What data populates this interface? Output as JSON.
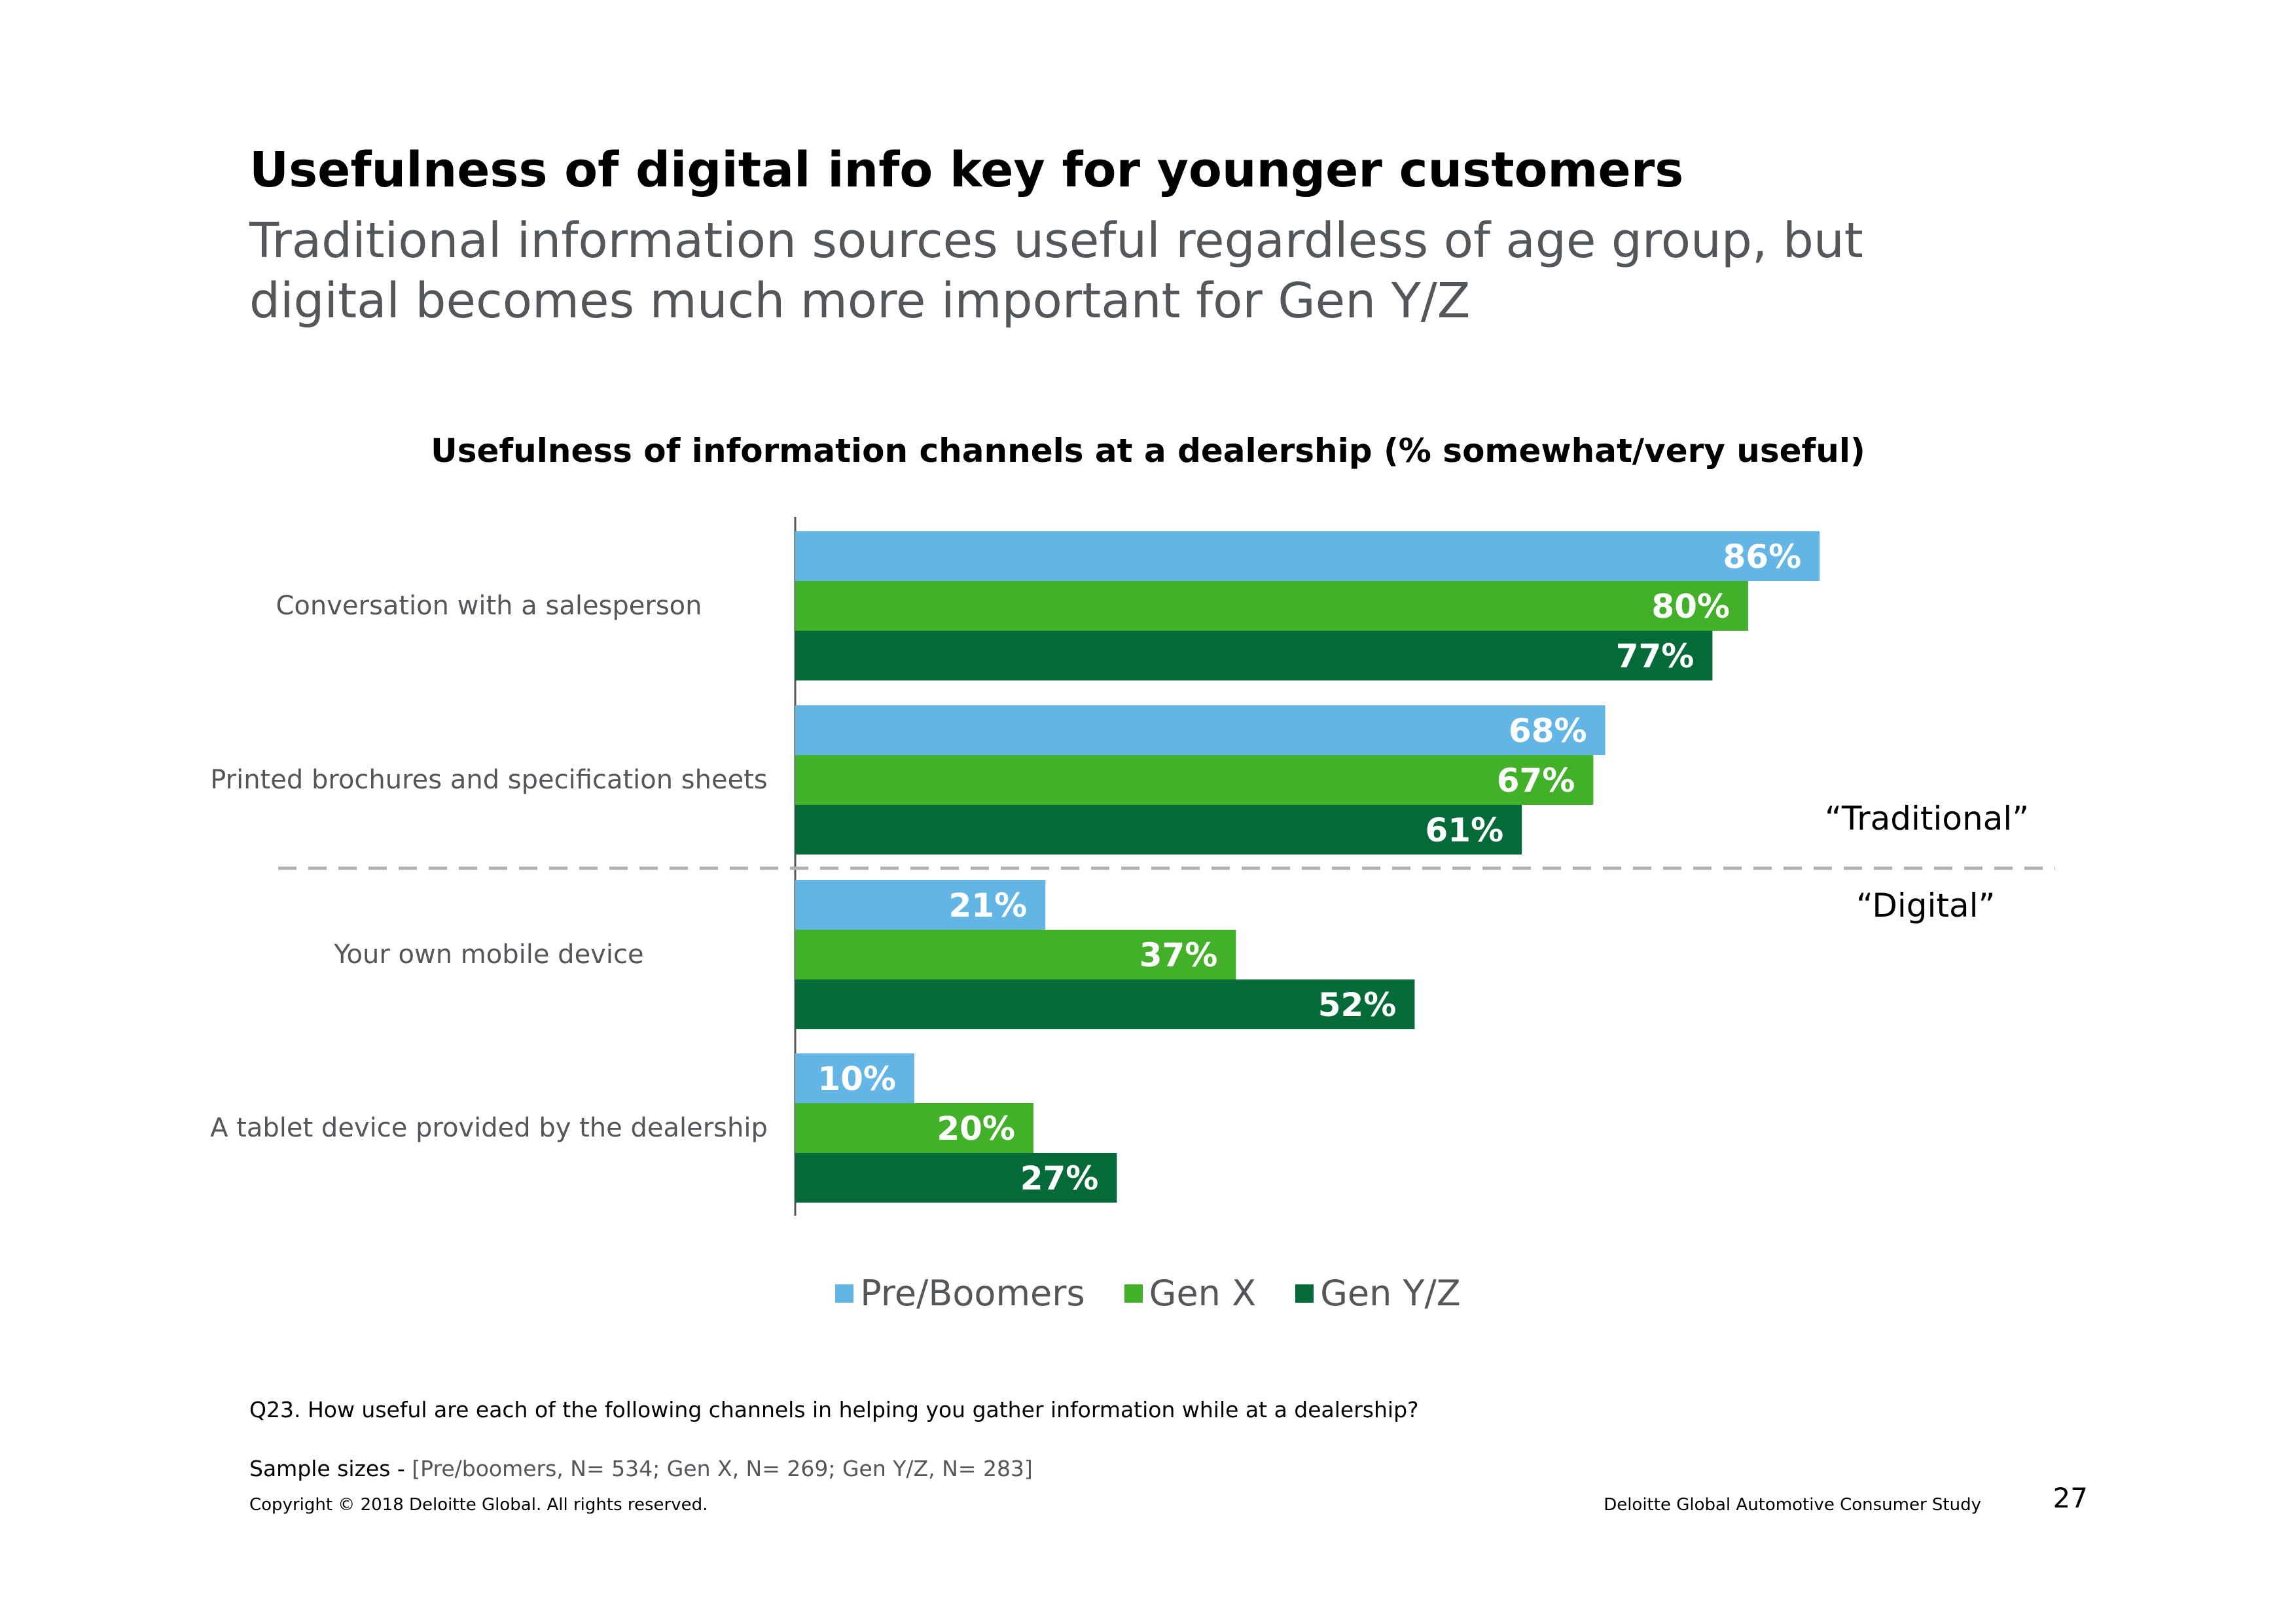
{
  "slide": {
    "title": "Usefulness of digital info key for younger customers",
    "subtitle": "Traditional information sources useful regardless of age group, but digital becomes much more important for Gen Y/Z"
  },
  "chart_data": {
    "type": "bar",
    "orientation": "horizontal",
    "title": "Usefulness of information channels at a dealership (% somewhat/very useful)",
    "categories": [
      "Conversation with a salesperson",
      "Printed brochures and specification sheets",
      "Your own mobile device",
      "A tablet device provided by the dealership"
    ],
    "series": [
      {
        "name": "Pre/Boomers",
        "values": [
          86,
          68,
          21,
          10
        ],
        "color": "#62b5e5"
      },
      {
        "name": "Gen X",
        "values": [
          80,
          67,
          37,
          20
        ],
        "color": "#43b02a"
      },
      {
        "name": "Gen Y/Z",
        "values": [
          77,
          61,
          52,
          27
        ],
        "color": "#046a38"
      }
    ],
    "data_labels": [
      [
        "86%",
        "80%",
        "77%"
      ],
      [
        "68%",
        "67%",
        "61%"
      ],
      [
        "21%",
        "37%",
        "52%"
      ],
      [
        "10%",
        "20%",
        "27%"
      ]
    ],
    "value_unit": "%",
    "xlim": [
      0,
      100
    ],
    "grid": false,
    "legend_position": "bottom",
    "groups": [
      {
        "label": "“Traditional”"
      },
      {
        "label": "“Digital”"
      }
    ]
  },
  "footer": {
    "question": "Q23. How useful are each of the following channels in helping you gather information while at a dealership?",
    "sample_label": "Sample sizes - ",
    "sample_value": "[Pre/boomers, N= 534; Gen X, N= 269; Gen Y/Z, N= 283]",
    "copyright": "Copyright © 2018 Deloitte Global. All rights reserved.",
    "study": "Deloitte Global Automotive Consumer Study",
    "page_number": "27"
  }
}
